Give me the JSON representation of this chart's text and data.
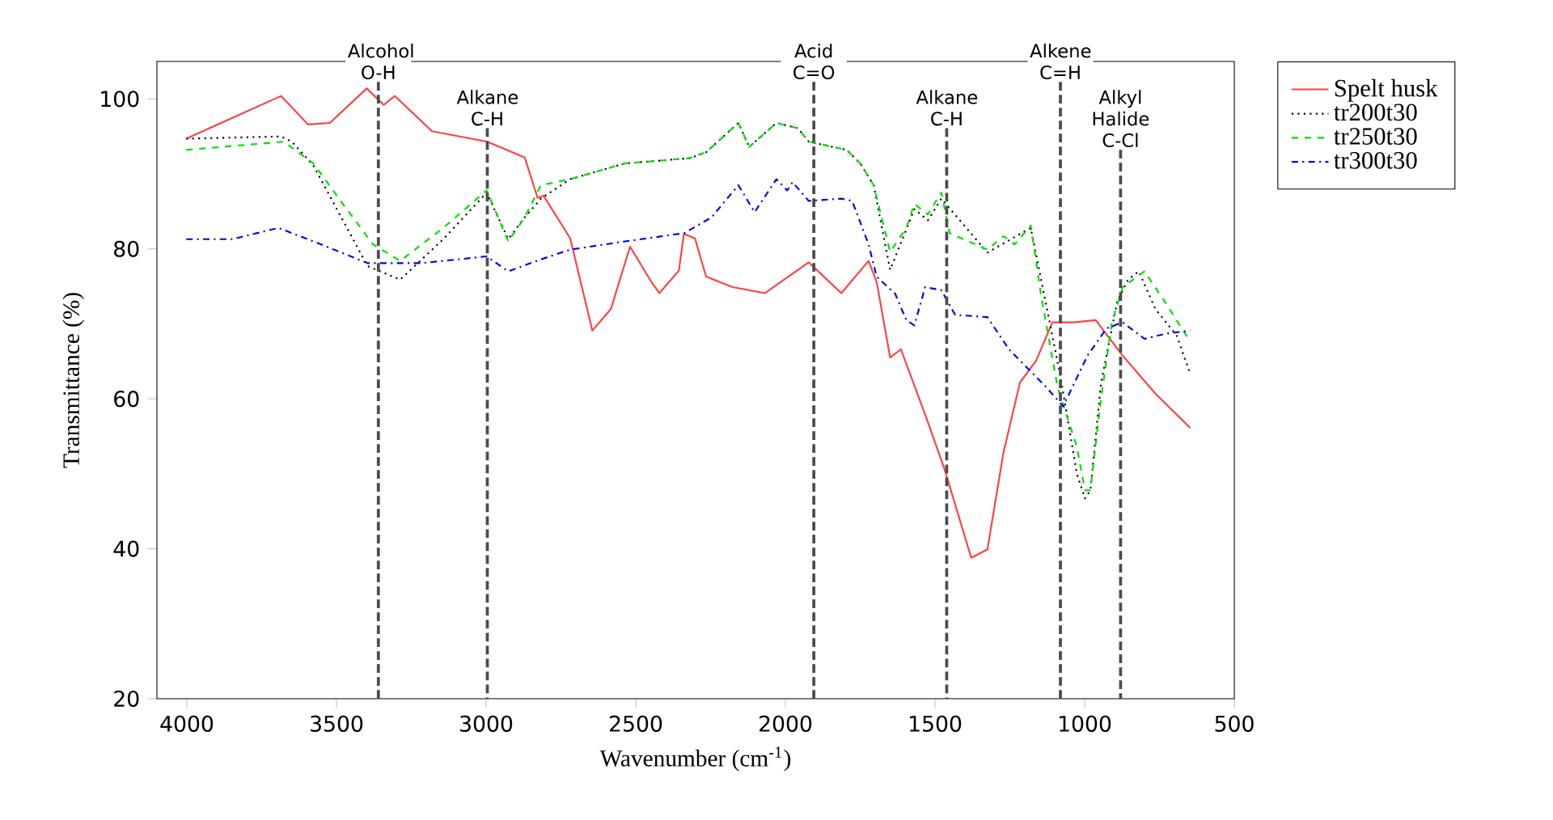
{
  "chart_data": {
    "type": "line",
    "xlabel": "Wavenumber (cm$^{-1}$)",
    "ylabel": "Transmittance (%)",
    "xlim": [
      4100,
      500
    ],
    "xticks": [
      4000,
      3500,
      3000,
      2500,
      2000,
      1500,
      1000,
      500
    ],
    "ylim": [
      20,
      105
    ],
    "yticks": [
      20,
      40,
      60,
      80,
      100
    ],
    "grid": false,
    "legend": "right",
    "marker": "none",
    "series": [
      {
        "name": "Spelt husk",
        "color": "#ff4040",
        "line_style": "solid",
        "x": [
          4002,
          3685,
          3595,
          3522,
          3399,
          3342,
          3305,
          3181,
          2996,
          2871,
          2828,
          2808,
          2719,
          2645,
          2583,
          2519,
          2448,
          2421,
          2356,
          2339,
          2302,
          2265,
          2177,
          2068,
          1922,
          1813,
          1722,
          1695,
          1650,
          1614,
          1533,
          1469,
          1379,
          1325,
          1271,
          1216,
          1162,
          1108,
          1037,
          963,
          874,
          766,
          647
        ],
        "values": [
          94.7,
          100.4,
          96.6,
          96.8,
          101.4,
          99.2,
          100.4,
          95.7,
          94.3,
          92.2,
          86.8,
          87.1,
          81.4,
          69.1,
          72.0,
          80.3,
          75.6,
          74.1,
          77.1,
          82.0,
          81.4,
          76.3,
          74.9,
          74.1,
          78.2,
          74.1,
          78.4,
          75.6,
          65.5,
          66.6,
          57.9,
          50.7,
          38.8,
          39.9,
          52.9,
          62.2,
          65.1,
          70.2,
          70.2,
          70.5,
          65.8,
          60.8,
          56.1
        ]
      },
      {
        "name": "tr200t30",
        "color": "#000000",
        "line_style": "dotted",
        "x": [
          4002,
          3685,
          3649,
          3577,
          3396,
          3287,
          3143,
          2998,
          2926,
          2871,
          2817,
          2719,
          2536,
          2319,
          2265,
          2157,
          2121,
          2030,
          1958,
          1922,
          1795,
          1750,
          1705,
          1650,
          1569,
          1524,
          1479,
          1325,
          1180,
          1081,
          1026,
          999,
          981,
          945,
          891,
          855,
          819,
          764,
          692,
          647
        ],
        "values": [
          94.7,
          95.0,
          94.3,
          91.1,
          77.7,
          75.9,
          81.3,
          87.5,
          81.3,
          84.2,
          86.7,
          89.3,
          91.4,
          92.1,
          92.9,
          96.8,
          93.6,
          96.8,
          96.1,
          94.3,
          93.2,
          91.4,
          88.5,
          77.2,
          85.3,
          83.8,
          86.7,
          79.5,
          82.8,
          63.0,
          50.0,
          46.7,
          47.8,
          62.2,
          73.0,
          75.9,
          77.0,
          72.0,
          68.4,
          63.3
        ]
      },
      {
        "name": "tr250t30",
        "color": "#00dd00",
        "line_style": "dashed",
        "x": [
          4002,
          3676,
          3577,
          3486,
          3378,
          3287,
          3143,
          2998,
          2926,
          2871,
          2817,
          2719,
          2536,
          2319,
          2265,
          2157,
          2121,
          2030,
          1958,
          1922,
          1795,
          1750,
          1705,
          1650,
          1596,
          1569,
          1524,
          1479,
          1451,
          1325,
          1271,
          1234,
          1180,
          1144,
          1090,
          1026,
          999,
          981,
          945,
          909,
          873,
          800,
          728,
          647
        ],
        "values": [
          93.2,
          94.3,
          91.4,
          86.4,
          80.6,
          78.4,
          82.8,
          87.8,
          81.0,
          84.2,
          88.5,
          89.3,
          91.4,
          92.1,
          92.9,
          96.8,
          93.6,
          96.8,
          96.1,
          94.3,
          93.2,
          91.4,
          88.5,
          79.6,
          82.8,
          86.0,
          84.6,
          87.5,
          82.1,
          79.9,
          81.7,
          80.6,
          83.1,
          73.4,
          61.5,
          53.6,
          47.8,
          47.8,
          60.1,
          70.2,
          74.9,
          77.0,
          72.7,
          67.6
        ]
      },
      {
        "name": "tr300t30",
        "color": "#0000ee",
        "line_style": "dashdot",
        "x": [
          4002,
          3848,
          3694,
          3577,
          3396,
          3215,
          2998,
          2926,
          2817,
          2719,
          2536,
          2338,
          2247,
          2157,
          2103,
          2030,
          1994,
          1976,
          1922,
          1813,
          1777,
          1722,
          1695,
          1633,
          1596,
          1569,
          1533,
          1479,
          1433,
          1325,
          1253,
          1127,
          1072,
          990,
          927,
          873,
          800,
          728,
          647
        ],
        "values": [
          81.3,
          81.3,
          82.8,
          81.0,
          78.1,
          78.1,
          79.0,
          77.0,
          78.6,
          79.9,
          81.0,
          82.1,
          84.2,
          88.5,
          84.9,
          89.3,
          87.8,
          88.9,
          86.4,
          86.7,
          86.4,
          80.6,
          76.3,
          74.0,
          70.5,
          69.8,
          74.9,
          74.5,
          71.2,
          70.9,
          66.6,
          61.5,
          59.0,
          65.8,
          69.4,
          70.2,
          68.0,
          68.7,
          69.1
        ]
      }
    ],
    "ref_lines": [
      {
        "axis": "x",
        "value": 3360,
        "label": "Alcohol O-H",
        "line_style": "dashed",
        "color": "#4c4c4c"
      },
      {
        "axis": "x",
        "value": 2996,
        "label": "Alkane C-H",
        "line_style": "dashed",
        "color": "#4c4c4c"
      },
      {
        "axis": "x",
        "value": 1905,
        "label": "Acid C=O",
        "line_style": "dashed",
        "color": "#4c4c4c"
      },
      {
        "axis": "x",
        "value": 1461,
        "label": "Alkane C-H",
        "line_style": "dashed",
        "color": "#4c4c4c"
      },
      {
        "axis": "x",
        "value": 1081,
        "label": "Alkene C=H",
        "line_style": "dashed",
        "color": "#4c4c4c"
      },
      {
        "axis": "x",
        "value": 880,
        "label": "Alkyl Halide C-Cl",
        "line_style": "dashed",
        "color": "#4c4c4c"
      }
    ]
  }
}
